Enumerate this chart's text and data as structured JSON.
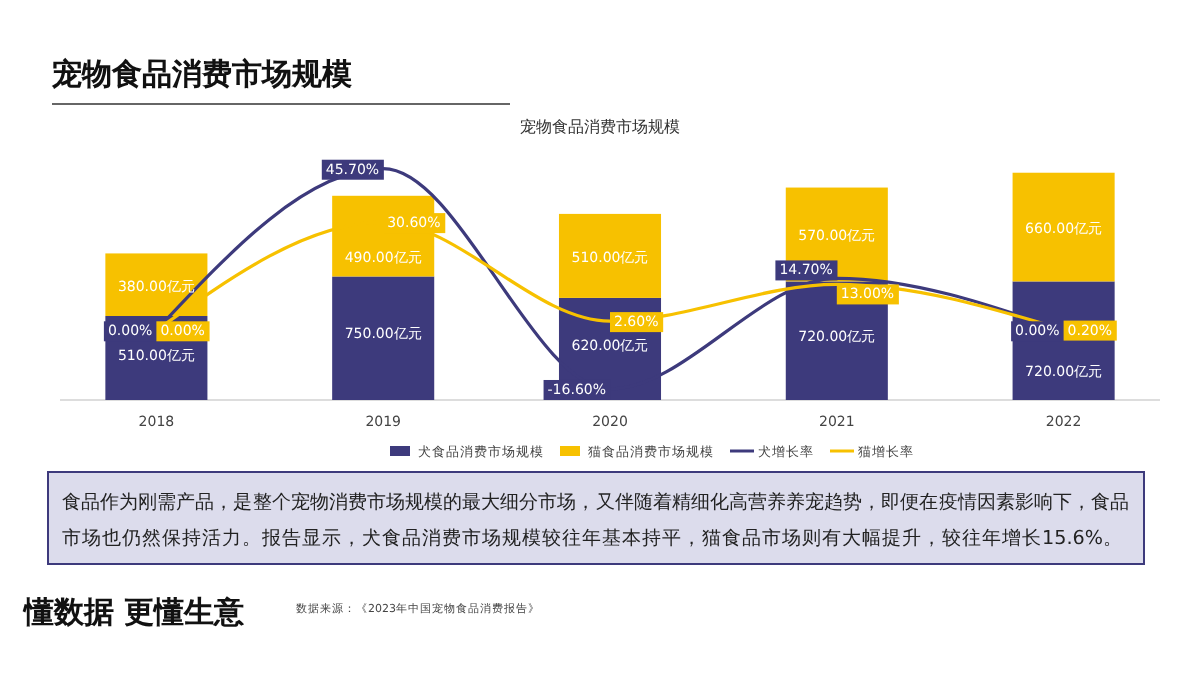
{
  "chart_data": {
    "type": "bar",
    "title": "宠物食品消费市场规模",
    "subtitle": "宠物食品消费市场规模",
    "categories": [
      "2018",
      "2019",
      "2020",
      "2021",
      "2022"
    ],
    "stacked": true,
    "legend": "bottom",
    "grid": false,
    "series": [
      {
        "name": "犬食品消费市场规模",
        "color": "#3d3a7c",
        "values": [
          510,
          750,
          620,
          720,
          720
        ],
        "value_labels": [
          "510.00亿元",
          "750.00亿元",
          "620.00亿元",
          "720.00亿元",
          "720.00亿元"
        ]
      },
      {
        "name": "猫食品消费市场规模",
        "color": "#f7c100",
        "values": [
          380,
          490,
          510,
          570,
          660
        ],
        "value_labels": [
          "380.00亿元",
          "490.00亿元",
          "510.00亿元",
          "570.00亿元",
          "660.00亿元"
        ]
      },
      {
        "name": "犬增长率",
        "type": "line",
        "axis": "y2",
        "color": "#3d3a7c",
        "values": [
          0,
          45.7,
          -16.6,
          14.7,
          0
        ],
        "value_labels": [
          "0.00%",
          "45.70%",
          "-16.60%",
          "14.70%",
          "0.00%"
        ]
      },
      {
        "name": "猫增长率",
        "type": "line",
        "axis": "y2",
        "color": "#f7c100",
        "values": [
          0,
          30.6,
          2.6,
          13.0,
          0.2
        ],
        "value_labels": [
          "0.00%",
          "30.60%",
          "2.60%",
          "13.00%",
          "0.20%"
        ]
      }
    ],
    "annotations": [
      "食品作为刚需产品，是整个宠物消费市场规模的最大细分市场，又伴随着精细化高营养养宠趋势，即便在疫情因素影响下，食品市场也仍然保持活力。报告显示，犬食品消费市场规模较往年基本持平，猫食品市场则有大幅提升，较往年增长15.6%。",
      "数据来源：《2023年中国宠物食品消费报告》",
      "懂数据 更懂生意"
    ]
  }
}
